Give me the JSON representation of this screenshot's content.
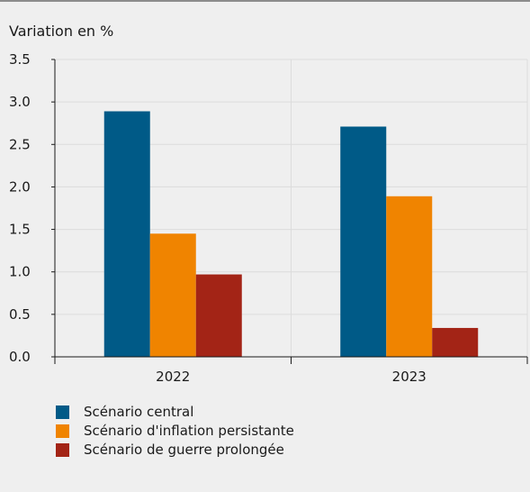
{
  "chart_data": {
    "type": "bar",
    "ylabel": "Variation en %",
    "categories": [
      "2022",
      "2023"
    ],
    "ylim": [
      0,
      3.5
    ],
    "yticks": [
      "0.0",
      "0.5",
      "1.0",
      "1.5",
      "2.0",
      "2.5",
      "3.0",
      "3.5"
    ],
    "grid": true,
    "legend_position": "bottom",
    "series": [
      {
        "name": "Scénario central",
        "color": "#005a87",
        "values": [
          2.89,
          2.71
        ]
      },
      {
        "name": "Scénario d'inflation persistante",
        "color": "#f08400",
        "values": [
          1.45,
          1.89
        ]
      },
      {
        "name": "Scénario de guerre prolongée",
        "color": "#a32416",
        "values": [
          0.97,
          0.34
        ]
      }
    ]
  }
}
